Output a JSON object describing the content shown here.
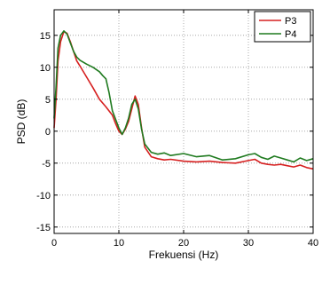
{
  "chart_data": {
    "type": "line",
    "xlabel": "Frekuensi (Hz)",
    "ylabel": "PSD (dB)",
    "xlim": [
      0,
      40
    ],
    "ylim": [
      -16,
      19
    ],
    "xticks": [
      0,
      10,
      20,
      30,
      40
    ],
    "yticks": [
      -15,
      -10,
      -5,
      0,
      5,
      10,
      15
    ],
    "grid": true,
    "legend_position": "top-right",
    "series": [
      {
        "name": "P3",
        "color": "#d62020",
        "x": [
          0,
          0.3,
          0.6,
          1,
          1.5,
          2,
          2.5,
          3,
          3.5,
          4,
          5,
          6,
          7,
          8,
          9,
          9.5,
          10,
          10.5,
          11,
          11.5,
          12,
          12.5,
          13,
          13.5,
          14,
          15,
          16,
          17,
          18,
          20,
          22,
          24,
          26,
          28,
          30,
          31,
          32,
          33,
          34,
          35,
          36,
          37,
          38,
          39,
          40
        ],
        "y": [
          0.5,
          5,
          11,
          14,
          15.6,
          15.3,
          14,
          12.5,
          11,
          10.2,
          8.5,
          6.8,
          5,
          3.8,
          2.5,
          1.2,
          0,
          -0.5,
          0.3,
          1.5,
          3.5,
          5.5,
          4.2,
          0.5,
          -2.5,
          -4,
          -4.3,
          -4.5,
          -4.4,
          -4.7,
          -4.8,
          -4.7,
          -4.9,
          -5,
          -4.6,
          -4.4,
          -5,
          -5.2,
          -5.3,
          -5.2,
          -5.4,
          -5.6,
          -5.3,
          -5.7,
          -5.9
        ]
      },
      {
        "name": "P4",
        "color": "#1f7a1f",
        "x": [
          0,
          0.3,
          0.6,
          1,
          1.5,
          2,
          2.5,
          3,
          3.5,
          4,
          5,
          6,
          7,
          7.5,
          8,
          8.5,
          9,
          10,
          10.5,
          11,
          11.5,
          12,
          12.5,
          13,
          13.5,
          14,
          15,
          16,
          17,
          18,
          20,
          22,
          24,
          26,
          28,
          30,
          31,
          32,
          33,
          34,
          35,
          36,
          37,
          38,
          39,
          40
        ],
        "y": [
          2,
          7,
          13,
          15,
          15.7,
          15.2,
          13.8,
          12.5,
          11.6,
          11.1,
          10.5,
          10,
          9.3,
          8.7,
          8.2,
          6,
          3.2,
          0.5,
          -0.5,
          0.5,
          2,
          4.2,
          5,
          3.5,
          0.3,
          -2,
          -3.3,
          -3.6,
          -3.4,
          -3.8,
          -3.5,
          -4,
          -3.8,
          -4.5,
          -4.3,
          -3.7,
          -3.5,
          -4.1,
          -4.4,
          -3.9,
          -4.2,
          -4.5,
          -4.8,
          -4.2,
          -4.6,
          -4.3
        ]
      }
    ]
  }
}
